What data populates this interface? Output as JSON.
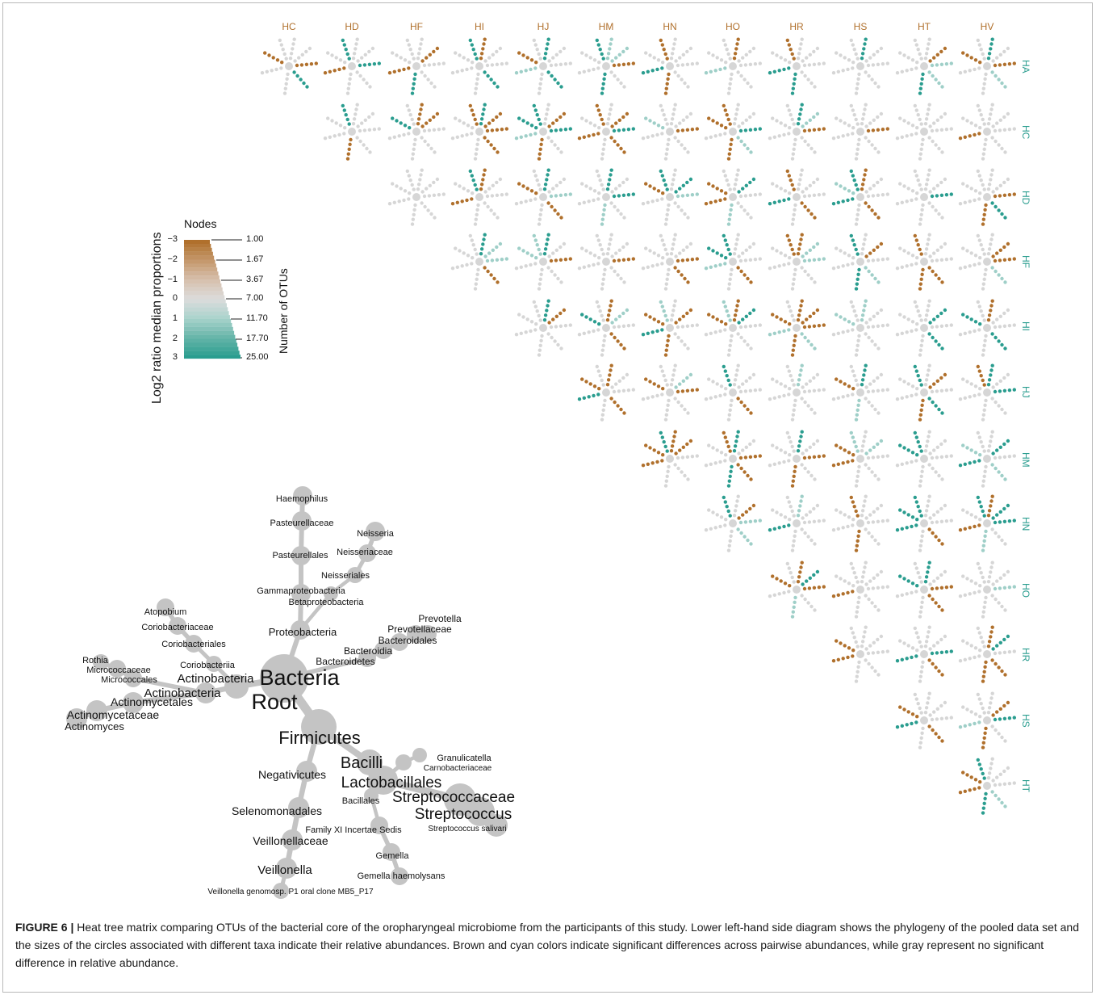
{
  "figure": {
    "column_labels": [
      "HC",
      "HD",
      "HF",
      "HI",
      "HJ",
      "HM",
      "HN",
      "HO",
      "HR",
      "HS",
      "HT",
      "HV"
    ],
    "row_labels": [
      "HA",
      "HC",
      "HD",
      "HF",
      "HI",
      "HJ",
      "HM",
      "HN",
      "HO",
      "HR",
      "HS",
      "HT"
    ],
    "colors": {
      "brown": "#b0702c",
      "cyan": "#2a9d8f",
      "neutral": "#d6d6d6",
      "label_brown": "#b0702c",
      "label_cyan": "#2a9d8f"
    }
  },
  "legend": {
    "title": "Nodes",
    "y_axis_label": "Log2 ratio median proportions",
    "right_axis_label": "Number of OTUs",
    "color_ticks": [
      "−3",
      "−2",
      "−1",
      "0",
      "1",
      "2",
      "3"
    ],
    "size_ticks": [
      "1.00",
      "1.67",
      "3.67",
      "7.00",
      "11.70",
      "17.70",
      "25.00"
    ]
  },
  "tree": {
    "labels": [
      {
        "text": "Haemophilus",
        "size": 11
      },
      {
        "text": "Pasteurellaceae",
        "size": 11
      },
      {
        "text": "Neisseria",
        "size": 11
      },
      {
        "text": "Pasteurellales",
        "size": 11
      },
      {
        "text": "Neisseriaceae",
        "size": 11
      },
      {
        "text": "Neisseriales",
        "size": 11
      },
      {
        "text": "Gammaproteobacteria",
        "size": 11
      },
      {
        "text": "Betaproteobacteria",
        "size": 11
      },
      {
        "text": "Atopobium",
        "size": 11
      },
      {
        "text": "Coriobacteriaceae",
        "size": 11
      },
      {
        "text": "Coriobacteriales",
        "size": 11
      },
      {
        "text": "Proteobacteria",
        "size": 13
      },
      {
        "text": "Prevotella",
        "size": 12
      },
      {
        "text": "Prevotellaceae",
        "size": 12
      },
      {
        "text": "Bacteroidales",
        "size": 12
      },
      {
        "text": "Bacteroidia",
        "size": 12
      },
      {
        "text": "Bacteroidetes",
        "size": 12
      },
      {
        "text": "Rothia",
        "size": 11
      },
      {
        "text": "Micrococcaceae",
        "size": 11
      },
      {
        "text": "Coriobacteriia",
        "size": 11
      },
      {
        "text": "Micrococcales",
        "size": 11
      },
      {
        "text": "Actinobacteria",
        "size": 15
      },
      {
        "text": "Bacteria",
        "size": 27
      },
      {
        "text": "Actinobacteria",
        "size": 15
      },
      {
        "text": "Root",
        "size": 27
      },
      {
        "text": "Actinomycetales",
        "size": 14
      },
      {
        "text": "Actinomycetaceae",
        "size": 14
      },
      {
        "text": "Actinomyces",
        "size": 13
      },
      {
        "text": "Firmicutes",
        "size": 22
      },
      {
        "text": "Granulicatella",
        "size": 11
      },
      {
        "text": "Bacilli",
        "size": 20
      },
      {
        "text": "Carnobacteriaceae",
        "size": 10
      },
      {
        "text": "Negativicutes",
        "size": 14
      },
      {
        "text": "Lactobacillales",
        "size": 19
      },
      {
        "text": "Streptococcaceae",
        "size": 19
      },
      {
        "text": "Bacillales",
        "size": 11
      },
      {
        "text": "Streptococcus",
        "size": 19
      },
      {
        "text": "Selenomonadales",
        "size": 14
      },
      {
        "text": "Family XI Incertae Sedis",
        "size": 11
      },
      {
        "text": "Streptococcus salivari",
        "size": 10
      },
      {
        "text": "Veillonellaceae",
        "size": 14
      },
      {
        "text": "Gemella",
        "size": 11
      },
      {
        "text": "Veillonella",
        "size": 15
      },
      {
        "text": "Gemella haemolysans",
        "size": 11
      },
      {
        "text": "Veillonella genomosp. P1 oral clone MB5_P17",
        "size": 10
      }
    ]
  },
  "caption": {
    "prefix": "FIGURE 6 |",
    "text": " Heat tree matrix comparing OTUs of the bacterial core of the oropharyngeal microbiome from the participants of this study. Lower left-hand side diagram shows the phylogeny of the pooled data set and the sizes of the circles associated with different taxa indicate their relative abundances. Brown and cyan colors indicate significant differences across pairwise abundances, while gray represent no significant difference in relative abundance."
  }
}
